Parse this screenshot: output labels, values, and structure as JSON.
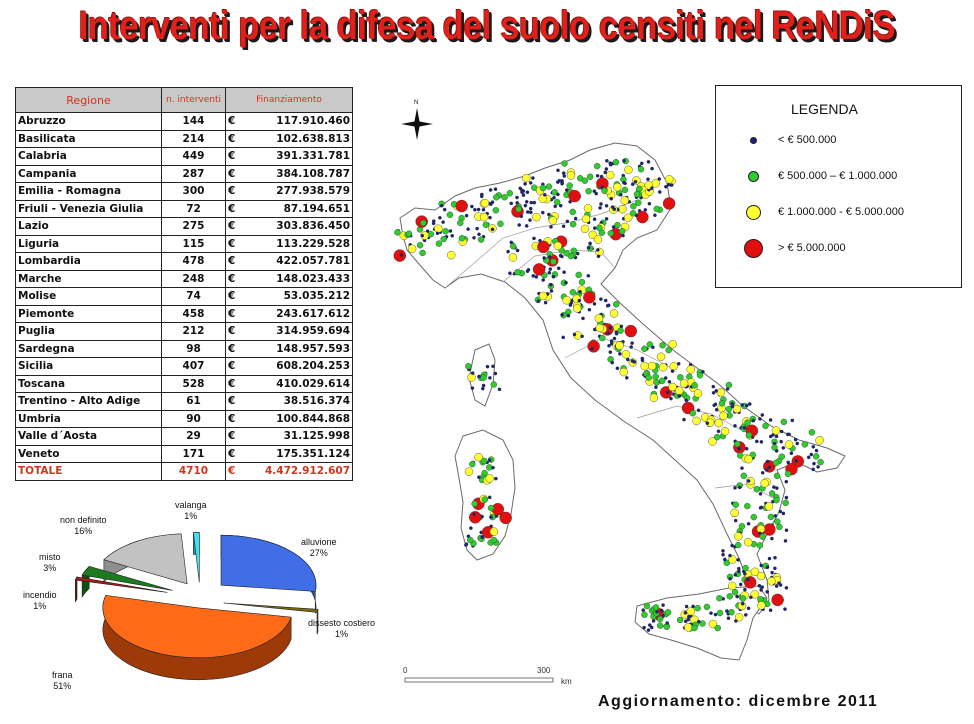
{
  "title": "Interventi per la difesa del suolo censiti nel ReNDiS",
  "table": {
    "headers": {
      "region": "Regione",
      "count": "n. interventi",
      "funding": "Finanziamento"
    },
    "currency": "€",
    "rows": [
      {
        "region": "Abruzzo",
        "count": "144",
        "funding": "117.910.460"
      },
      {
        "region": "Basilicata",
        "count": "214",
        "funding": "102.638.813"
      },
      {
        "region": "Calabria",
        "count": "449",
        "funding": "391.331.781"
      },
      {
        "region": "Campania",
        "count": "287",
        "funding": "384.108.787"
      },
      {
        "region": "Emilia - Romagna",
        "count": "300",
        "funding": "277.938.579"
      },
      {
        "region": "Friuli - Venezia Giulia",
        "count": "72",
        "funding": "87.194.651"
      },
      {
        "region": "Lazio",
        "count": "275",
        "funding": "303.836.450"
      },
      {
        "region": "Liguria",
        "count": "115",
        "funding": "113.229.528"
      },
      {
        "region": "Lombardia",
        "count": "478",
        "funding": "422.057.781"
      },
      {
        "region": "Marche",
        "count": "248",
        "funding": "148.023.433"
      },
      {
        "region": "Molise",
        "count": "74",
        "funding": "53.035.212"
      },
      {
        "region": "Piemonte",
        "count": "458",
        "funding": "243.617.612"
      },
      {
        "region": "Puglia",
        "count": "212",
        "funding": "314.959.694"
      },
      {
        "region": "Sardegna",
        "count": "98",
        "funding": "148.957.593"
      },
      {
        "region": "Sicilia",
        "count": "407",
        "funding": "608.204.253"
      },
      {
        "region": "Toscana",
        "count": "528",
        "funding": "410.029.614"
      },
      {
        "region": "Trentino - Alto Adige",
        "count": "61",
        "funding": "38.516.374"
      },
      {
        "region": "Umbria",
        "count": "90",
        "funding": "100.844.868"
      },
      {
        "region": "Valle d´Aosta",
        "count": "29",
        "funding": "31.125.998"
      },
      {
        "region": "Veneto",
        "count": "171",
        "funding": "175.351.124"
      }
    ],
    "total": {
      "region": "TOTALE",
      "count": "4710",
      "funding": "4.472.912.607"
    }
  },
  "pie": {
    "slices": [
      {
        "label": "alluvione",
        "percent_text": "27%",
        "value": 27,
        "color": "#3f6ee6",
        "side": "#2c4fa8"
      },
      {
        "label": "dissesto costiero",
        "percent_text": "1%",
        "value": 1,
        "color": "#7a6a10",
        "side": "#5a4c0a"
      },
      {
        "label": "frana",
        "percent_text": "51%",
        "value": 51,
        "color": "#ff6a18",
        "side": "#9e3a08"
      },
      {
        "label": "incendio",
        "percent_text": "1%",
        "value": 1,
        "color": "#b01818",
        "side": "#7a0e0e"
      },
      {
        "label": "misto",
        "percent_text": "3%",
        "value": 3,
        "color": "#1e7a1e",
        "side": "#0f4f0f"
      },
      {
        "label": "non definito",
        "percent_text": "16%",
        "value": 16,
        "color": "#c2c2c2",
        "side": "#8e8e8e"
      },
      {
        "label": "valanga",
        "percent_text": "1%",
        "value": 1,
        "color": "#45e0f0",
        "side": "#1aa0b0"
      }
    ]
  },
  "legend": {
    "title": "LEGENDA",
    "items": [
      {
        "label": "< € 500.000",
        "color": "#1a237e"
      },
      {
        "label": "€ 500.000 – € 1.000.000",
        "color": "#2ecc2e"
      },
      {
        "label": "€ 1.000.000 - € 5.000.000",
        "color": "#ffff33"
      },
      {
        "label": "> € 5.000.000",
        "color": "#e01010"
      }
    ]
  },
  "map": {
    "north_label": "N",
    "scale_start": "0",
    "scale_end": "300",
    "scale_unit": "km"
  },
  "update": "Aggiornamento: dicembre 2011"
}
